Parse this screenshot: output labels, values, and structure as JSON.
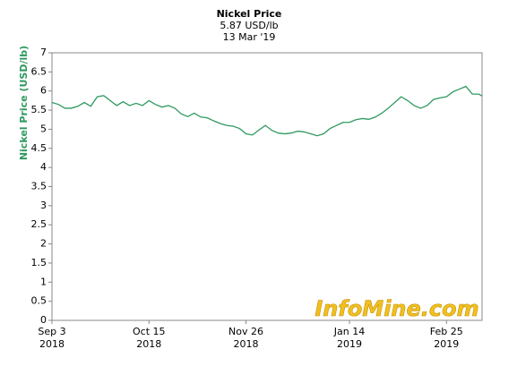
{
  "chart_data": {
    "type": "line",
    "title": "Nickel Price",
    "subtitle": "5.87 USD/lb",
    "date_label": "13 Mar '19",
    "y_label": "Nickel Price (USD/lb)",
    "watermark": "InfoMine.com",
    "x": [
      0,
      2,
      4,
      6,
      8,
      10,
      12,
      14,
      16,
      18,
      20,
      22,
      24,
      26,
      28,
      30,
      32,
      34,
      36,
      38,
      40,
      42,
      44,
      46,
      48,
      50,
      52,
      54,
      56,
      58,
      60,
      62,
      64,
      66,
      68,
      70,
      72,
      74,
      76,
      78,
      80,
      82,
      84,
      86,
      88,
      90,
      92,
      94,
      96,
      98,
      100,
      102,
      104,
      106,
      108,
      110,
      112,
      114,
      116,
      118,
      120,
      122,
      124,
      126,
      128,
      130,
      132,
      133
    ],
    "series": [
      {
        "name": "Nickel Price",
        "color": "#2e9960",
        "values": [
          5.7,
          5.65,
          5.55,
          5.55,
          5.6,
          5.7,
          5.6,
          5.85,
          5.88,
          5.75,
          5.62,
          5.72,
          5.62,
          5.68,
          5.62,
          5.75,
          5.65,
          5.58,
          5.62,
          5.55,
          5.4,
          5.33,
          5.42,
          5.32,
          5.3,
          5.22,
          5.15,
          5.1,
          5.08,
          5.02,
          4.88,
          4.85,
          4.98,
          5.1,
          4.97,
          4.9,
          4.88,
          4.9,
          4.95,
          4.93,
          4.88,
          4.83,
          4.88,
          5.02,
          5.1,
          5.18,
          5.18,
          5.25,
          5.28,
          5.26,
          5.32,
          5.42,
          5.55,
          5.7,
          5.85,
          5.75,
          5.62,
          5.55,
          5.62,
          5.78,
          5.82,
          5.85,
          5.98,
          6.05,
          6.12,
          5.92,
          5.92,
          5.87
        ]
      }
    ],
    "xlim": [
      0,
      133
    ],
    "xticks": [
      {
        "value": 0,
        "label": "Sep 3"
      },
      {
        "value": 30,
        "label": "Oct 15"
      },
      {
        "value": 60,
        "label": "Nov 26"
      },
      {
        "value": 92,
        "label": "Jan 14"
      },
      {
        "value": 122,
        "label": "Feb 25"
      }
    ],
    "xtick_years": [
      "2018",
      "2018",
      "2018",
      "2019",
      "2019"
    ],
    "ylim": [
      0,
      7
    ],
    "yticks": [
      0,
      0.5,
      1,
      1.5,
      2,
      2.5,
      3,
      3.5,
      4,
      4.5,
      5,
      5.5,
      6,
      6.5,
      7
    ]
  }
}
